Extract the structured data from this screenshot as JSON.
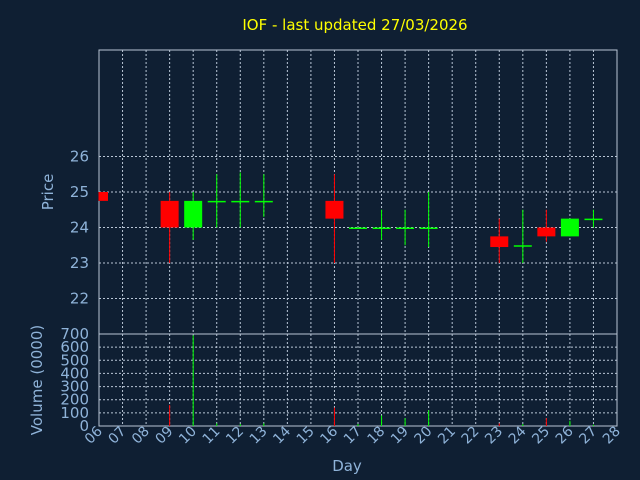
{
  "chart_data": {
    "type": "candlestick",
    "title": "IOF - last updated 27/03/2026",
    "xlabel": "Day",
    "price_ylabel": "Price",
    "volume_ylabel": "Volume (0000)",
    "x_ticks": [
      "06",
      "07",
      "08",
      "09",
      "10",
      "11",
      "12",
      "13",
      "14",
      "15",
      "16",
      "17",
      "18",
      "19",
      "20",
      "21",
      "22",
      "23",
      "24",
      "25",
      "26",
      "27",
      "28"
    ],
    "price_ylim": [
      21,
      29
    ],
    "price_yticks": [
      22,
      23,
      24,
      25,
      26
    ],
    "volume_ylim": [
      0,
      700
    ],
    "volume_yticks": [
      0,
      100,
      200,
      300,
      400,
      500,
      600,
      700
    ],
    "grid": true,
    "colors": {
      "up": "#00ff00",
      "down": "#ff0000",
      "title": "#ffff00",
      "axis_text": "#8fb3d9",
      "grid": "#b9c6d6",
      "background": "#0f1f33"
    },
    "candles": [
      {
        "day": "06",
        "open": 25.0,
        "high": 25.0,
        "low": 24.75,
        "close": 24.75,
        "volume": 0
      },
      {
        "day": "09",
        "open": 24.75,
        "high": 25.0,
        "low": 23.0,
        "close": 24.0,
        "volume": 160
      },
      {
        "day": "10",
        "open": 24.0,
        "high": 25.0,
        "low": 23.65,
        "close": 24.75,
        "volume": 690
      },
      {
        "day": "11",
        "open": 24.75,
        "high": 25.5,
        "low": 24.0,
        "close": 24.75,
        "volume": 20
      },
      {
        "day": "12",
        "open": 24.75,
        "high": 25.55,
        "low": 24.0,
        "close": 24.75,
        "volume": 15
      },
      {
        "day": "13",
        "open": 24.75,
        "high": 25.5,
        "low": 24.3,
        "close": 24.75,
        "volume": 20
      },
      {
        "day": "16",
        "open": 24.75,
        "high": 25.5,
        "low": 23.0,
        "close": 24.25,
        "volume": 140
      },
      {
        "day": "17",
        "open": 24.0,
        "high": 24.0,
        "low": 24.0,
        "close": 24.0,
        "volume": 15
      },
      {
        "day": "18",
        "open": 24.0,
        "high": 24.5,
        "low": 23.65,
        "close": 24.0,
        "volume": 80
      },
      {
        "day": "19",
        "open": 24.0,
        "high": 24.5,
        "low": 23.5,
        "close": 24.0,
        "volume": 60
      },
      {
        "day": "20",
        "open": 24.0,
        "high": 25.0,
        "low": 23.45,
        "close": 24.0,
        "volume": 120
      },
      {
        "day": "23",
        "open": 23.75,
        "high": 24.25,
        "low": 23.0,
        "close": 23.45,
        "volume": 20
      },
      {
        "day": "24",
        "open": 23.5,
        "high": 24.5,
        "low": 23.0,
        "close": 23.5,
        "volume": 15
      },
      {
        "day": "25",
        "open": 24.0,
        "high": 24.5,
        "low": 23.6,
        "close": 23.75,
        "volume": 60
      },
      {
        "day": "26",
        "open": 23.75,
        "high": 24.25,
        "low": 23.75,
        "close": 24.25,
        "volume": 40
      },
      {
        "day": "27",
        "open": 24.25,
        "high": 24.5,
        "low": 24.0,
        "close": 24.25,
        "volume": 10
      }
    ]
  }
}
